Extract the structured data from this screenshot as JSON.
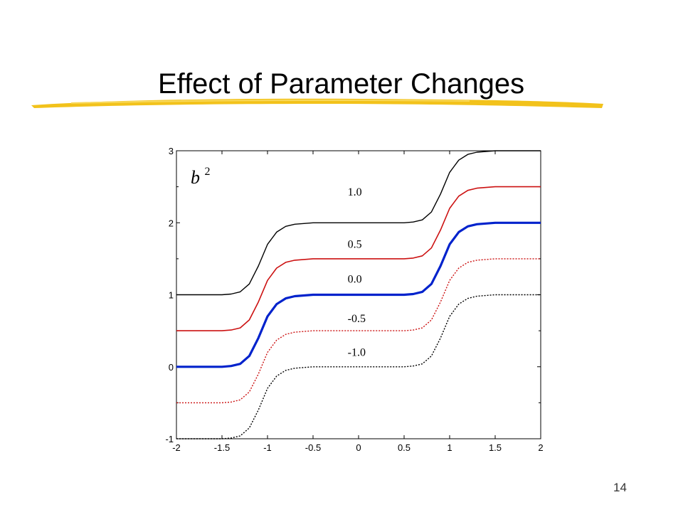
{
  "slide": {
    "title": "Effect of Parameter Changes",
    "page_number": "14",
    "accent_color": "#f2c21b"
  },
  "chart_data": {
    "type": "line",
    "corner_label_base": "b",
    "corner_label_sup": "2",
    "xlim": [
      -2,
      2
    ],
    "ylim": [
      -1,
      3
    ],
    "x_ticks": [
      {
        "value": -2,
        "label": "-2"
      },
      {
        "value": -1.5,
        "label": "-1.5"
      },
      {
        "value": -1,
        "label": "-1"
      },
      {
        "value": -0.5,
        "label": "-0.5"
      },
      {
        "value": 0,
        "label": "0"
      },
      {
        "value": 0.5,
        "label": "0.5"
      },
      {
        "value": 1,
        "label": "1"
      },
      {
        "value": 1.5,
        "label": "1.5"
      },
      {
        "value": 2,
        "label": "2"
      }
    ],
    "y_ticks": [
      {
        "value": -1,
        "label": "-1"
      },
      {
        "value": 0,
        "label": "0"
      },
      {
        "value": 1,
        "label": "1"
      },
      {
        "value": 2,
        "label": "2"
      },
      {
        "value": 3,
        "label": "3"
      }
    ],
    "x": [
      -2.0,
      -1.8,
      -1.6,
      -1.5,
      -1.4,
      -1.3,
      -1.2,
      -1.1,
      -1.0,
      -0.9,
      -0.8,
      -0.7,
      -0.6,
      -0.5,
      -0.3,
      0.0,
      0.3,
      0.5,
      0.6,
      0.7,
      0.8,
      0.9,
      1.0,
      1.1,
      1.2,
      1.3,
      1.4,
      1.5,
      1.6,
      1.8,
      2.0
    ],
    "series": [
      {
        "label": "1.0",
        "label_x": -0.12,
        "label_y": 2.38,
        "color": "#000000",
        "width": 1.4,
        "dash": "",
        "values": [
          1.0,
          1.0,
          1.0,
          1.0,
          1.01,
          1.04,
          1.15,
          1.4,
          1.7,
          1.87,
          1.95,
          1.98,
          1.99,
          2.0,
          2.0,
          2.0,
          2.0,
          2.0,
          2.01,
          2.04,
          2.15,
          2.4,
          2.7,
          2.87,
          2.95,
          2.98,
          2.99,
          3.0,
          3.0,
          3.0,
          3.0
        ]
      },
      {
        "label": "0.5",
        "label_x": -0.12,
        "label_y": 1.65,
        "color": "#cc1111",
        "width": 1.6,
        "dash": "",
        "values": [
          0.5,
          0.5,
          0.5,
          0.5,
          0.51,
          0.54,
          0.65,
          0.9,
          1.2,
          1.37,
          1.45,
          1.48,
          1.49,
          1.5,
          1.5,
          1.5,
          1.5,
          1.5,
          1.51,
          1.54,
          1.65,
          1.9,
          2.2,
          2.37,
          2.45,
          2.48,
          2.49,
          2.5,
          2.5,
          2.5,
          2.5
        ]
      },
      {
        "label": "0.0",
        "label_x": -0.12,
        "label_y": 1.17,
        "color": "#0022cc",
        "width": 3.2,
        "dash": "",
        "values": [
          0.0,
          0.0,
          0.0,
          0.0,
          0.01,
          0.04,
          0.15,
          0.4,
          0.7,
          0.87,
          0.95,
          0.98,
          0.99,
          1.0,
          1.0,
          1.0,
          1.0,
          1.0,
          1.01,
          1.04,
          1.15,
          1.4,
          1.7,
          1.87,
          1.95,
          1.98,
          1.99,
          2.0,
          2.0,
          2.0,
          2.0
        ]
      },
      {
        "label": "-0.5",
        "label_x": -0.12,
        "label_y": 0.62,
        "color": "#cc1111",
        "width": 1.4,
        "dash": "2,2",
        "values": [
          -0.5,
          -0.5,
          -0.5,
          -0.5,
          -0.49,
          -0.46,
          -0.35,
          -0.1,
          0.2,
          0.37,
          0.45,
          0.48,
          0.49,
          0.5,
          0.5,
          0.5,
          0.5,
          0.5,
          0.51,
          0.54,
          0.65,
          0.9,
          1.2,
          1.37,
          1.45,
          1.48,
          1.49,
          1.5,
          1.5,
          1.5,
          1.5
        ]
      },
      {
        "label": "-1.0",
        "label_x": -0.12,
        "label_y": 0.15,
        "color": "#000000",
        "width": 1.4,
        "dash": "2,2",
        "values": [
          -1.0,
          -1.0,
          -1.0,
          -1.0,
          -0.99,
          -0.96,
          -0.85,
          -0.6,
          -0.3,
          -0.13,
          -0.05,
          -0.02,
          -0.01,
          0.0,
          0.0,
          0.0,
          0.0,
          0.0,
          0.01,
          0.04,
          0.15,
          0.4,
          0.7,
          0.87,
          0.95,
          0.98,
          0.99,
          1.0,
          1.0,
          1.0,
          1.0
        ]
      }
    ]
  }
}
